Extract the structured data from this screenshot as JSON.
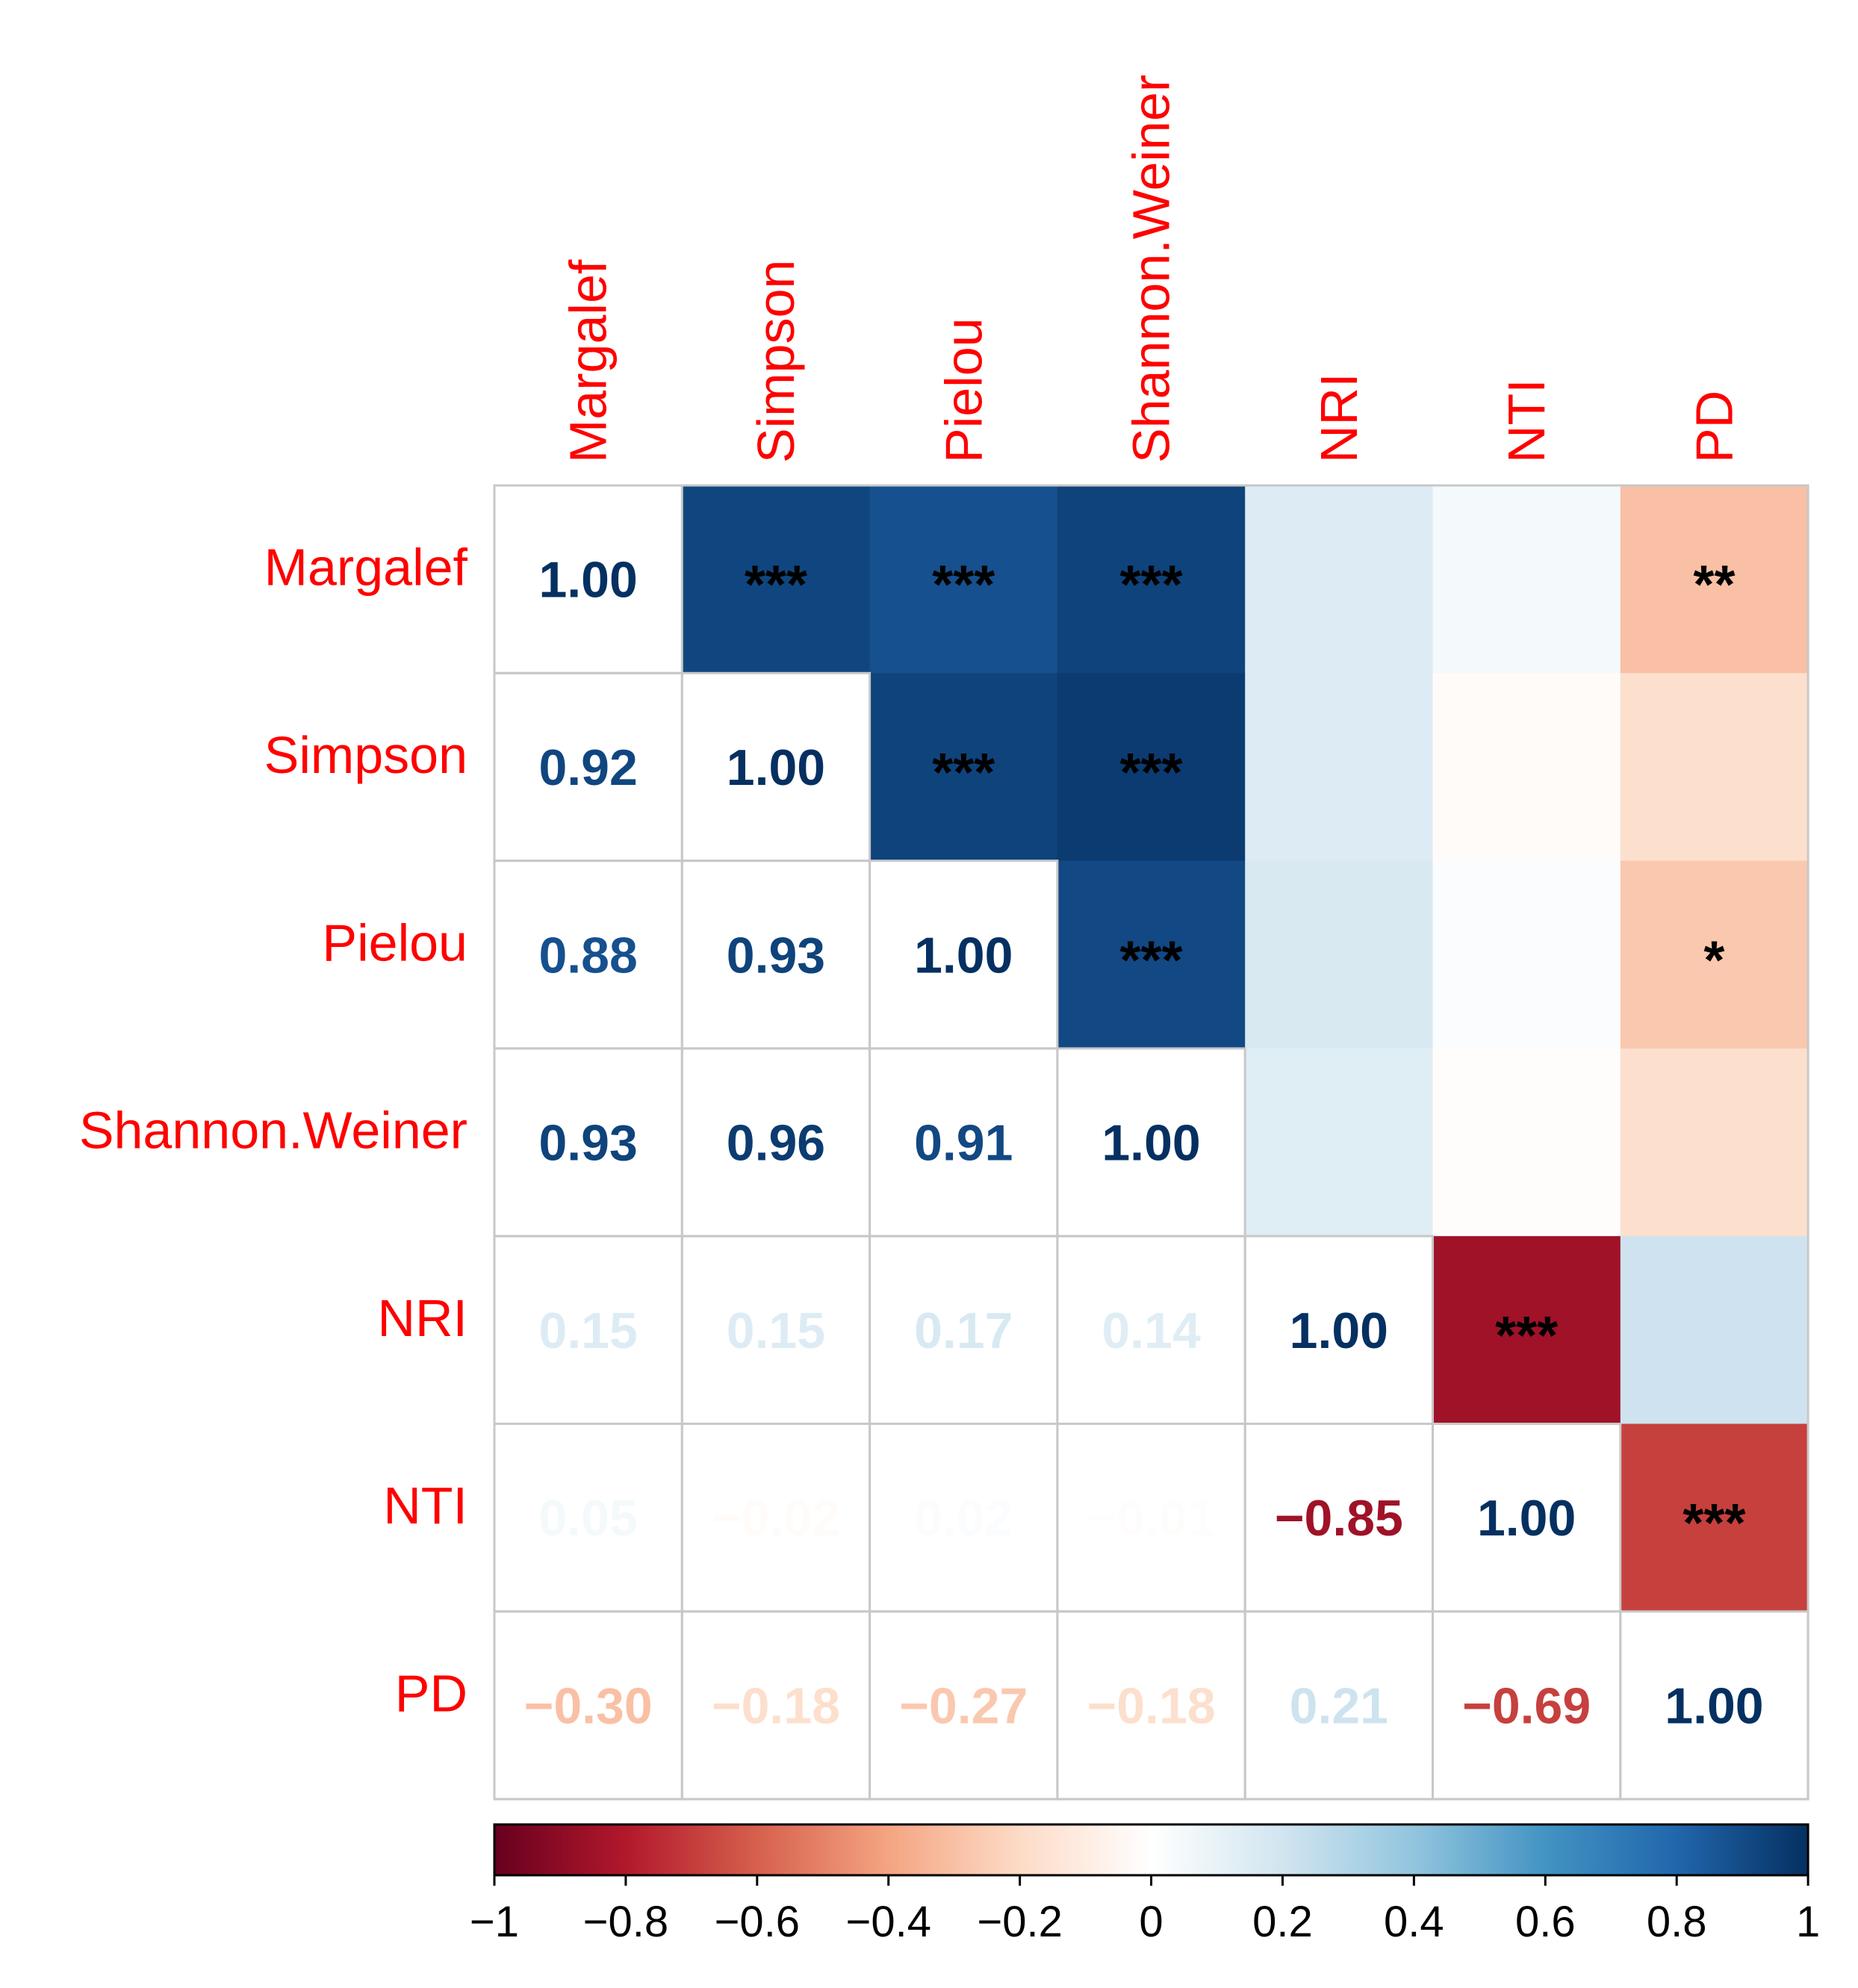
{
  "chart_data": {
    "type": "heatmap",
    "subtype": "correlation-matrix",
    "variables": [
      "Margalef",
      "Simpson",
      "Pielou",
      "Shannon.Weiner",
      "NRI",
      "NTI",
      "PD"
    ],
    "lower_triangle_values": [
      [
        "1.00"
      ],
      [
        "0.92",
        "1.00"
      ],
      [
        "0.88",
        "0.93",
        "1.00"
      ],
      [
        "0.93",
        "0.96",
        "0.91",
        "1.00"
      ],
      [
        "0.15",
        "0.15",
        "0.17",
        "0.14",
        "1.00"
      ],
      [
        "0.05",
        "−0.02",
        "0.02",
        "−0.01",
        "−0.85",
        "1.00"
      ],
      [
        "−0.30",
        "−0.18",
        "−0.27",
        "−0.18",
        "0.21",
        "−0.69",
        "1.00"
      ]
    ],
    "matrix": [
      [
        1.0,
        0.92,
        0.88,
        0.93,
        0.15,
        0.05,
        -0.3
      ],
      [
        0.92,
        1.0,
        0.93,
        0.96,
        0.15,
        -0.02,
        -0.18
      ],
      [
        0.88,
        0.93,
        1.0,
        0.91,
        0.17,
        0.02,
        -0.27
      ],
      [
        0.93,
        0.96,
        0.91,
        1.0,
        0.14,
        -0.01,
        -0.18
      ],
      [
        0.15,
        0.15,
        0.17,
        0.14,
        1.0,
        -0.85,
        0.21
      ],
      [
        0.05,
        -0.02,
        0.02,
        -0.01,
        -0.85,
        1.0,
        -0.69
      ],
      [
        -0.3,
        -0.18,
        -0.27,
        -0.18,
        0.21,
        -0.69,
        1.0
      ]
    ],
    "upper_triangle_significance": [
      [
        "",
        "***",
        "***",
        "***",
        "",
        "",
        "**"
      ],
      [
        "",
        "",
        "***",
        "***",
        "",
        "",
        ""
      ],
      [
        "",
        "",
        "",
        "***",
        "",
        "",
        "*"
      ],
      [
        "",
        "",
        "",
        "",
        "",
        "",
        ""
      ],
      [
        "",
        "",
        "",
        "",
        "",
        "***",
        ""
      ],
      [
        "",
        "",
        "",
        "",
        "",
        "",
        "***"
      ],
      [
        "",
        "",
        "",
        "",
        "",
        "",
        ""
      ]
    ],
    "colorbar": {
      "range": [
        -1,
        1
      ],
      "ticks": [
        -1,
        -0.8,
        -0.6,
        -0.4,
        -0.2,
        0,
        0.2,
        0.4,
        0.6,
        0.8,
        1
      ],
      "tick_labels": [
        "−1",
        "−0.8",
        "−0.6",
        "−0.4",
        "−0.2",
        "0",
        "0.2",
        "0.4",
        "0.6",
        "0.8",
        "1"
      ],
      "placement": "bottom"
    },
    "colors": {
      "label": "#ff0000",
      "grid": "#c8c8c8",
      "text": "#000000",
      "stops": [
        "#67001f",
        "#b2182b",
        "#d6604d",
        "#f4a582",
        "#fddbc7",
        "#ffffff",
        "#d1e5f0",
        "#92c5de",
        "#4393c3",
        "#2166ac",
        "#053061"
      ]
    }
  }
}
